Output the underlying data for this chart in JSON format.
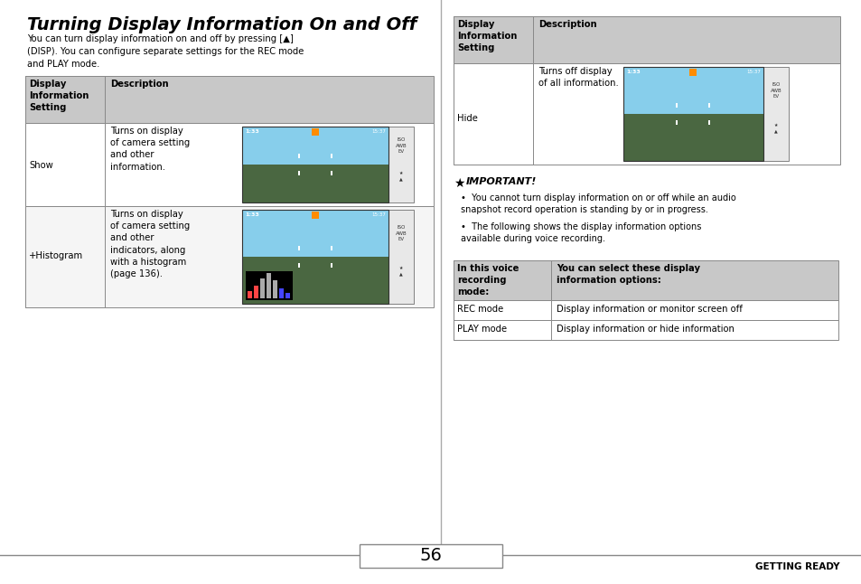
{
  "title": "Turning Display Information On and Off",
  "background_color": "#ffffff",
  "page_number": "56",
  "footer_text": "GETTING READY",
  "intro_text": "You can turn display information on and off by pressing [▲]\n(DISP). You can configure separate settings for the REC mode\nand PLAY mode.",
  "important_title": "IMPORTANT!",
  "important_bullets": [
    "You cannot turn display information on or off while an audio\nsnapshot record operation is standing by or in progress.",
    "The following shows the display information options\navailable during voice recording."
  ],
  "voice_table_rows": [
    [
      "REC mode",
      "Display information or monitor screen off"
    ],
    [
      "PLAY mode",
      "Display information or hide information"
    ]
  ],
  "header_bg": "#c8c8c8",
  "table_border": "#888888",
  "text_color": "#000000",
  "divider_color": "#aaaaaa",
  "sky_color": "#87ceeb",
  "mountain_color": "#4a6741"
}
